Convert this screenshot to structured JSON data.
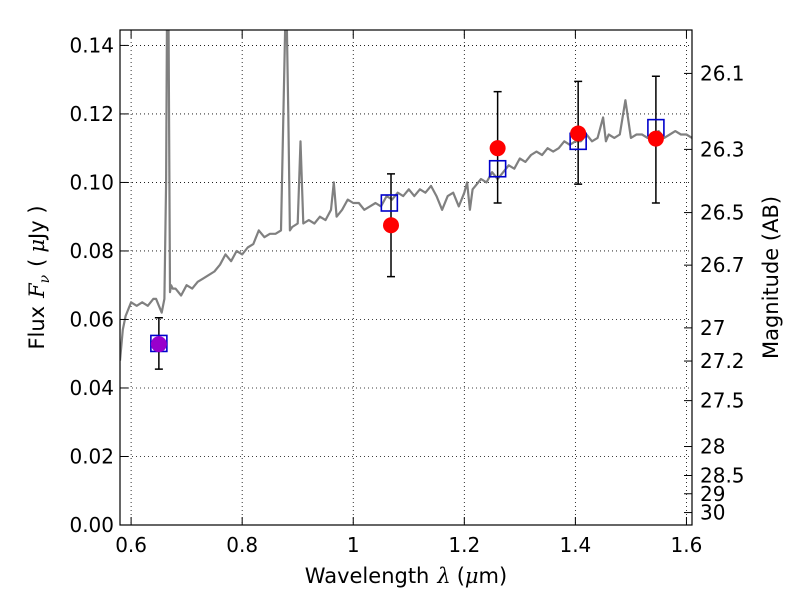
{
  "chart_data": {
    "type": "scatter",
    "title": "",
    "xlabel": "Wavelength",
    "xlabel_symbol": "λ",
    "xlabel_unit_open": "(",
    "xlabel_unit_prefix": "μ",
    "xlabel_unit": "m)",
    "ylabel": "Flux",
    "ylabel_symbol": "F",
    "ylabel_subscript": "ν",
    "ylabel_unit_open": "(",
    "ylabel_unit_prefix": "μ",
    "ylabel_unit": "Jy )",
    "y2label": "Magnitude (AB)",
    "xlim": [
      0.58,
      1.61
    ],
    "ylim": [
      0.0,
      0.1445
    ],
    "grid": true,
    "x_ticks": [
      0.6,
      0.8,
      1.0,
      1.2,
      1.4,
      1.6
    ],
    "x_tick_labels": [
      "0.6",
      "0.8",
      "1",
      "1.2",
      "1.4",
      "1.6"
    ],
    "y_ticks": [
      0.0,
      0.02,
      0.04,
      0.06,
      0.08,
      0.1,
      0.12,
      0.14
    ],
    "y_tick_labels": [
      "0.00",
      "0.02",
      "0.04",
      "0.06",
      "0.08",
      "0.10",
      "0.12",
      "0.14"
    ],
    "y2_ticks": [
      26.1,
      26.3,
      26.5,
      26.7,
      27,
      27.2,
      27.5,
      28,
      28.5,
      29,
      30
    ],
    "y2_tick_labels": [
      "26.1",
      "26.3",
      "26.5",
      "26.7",
      "27",
      "27.2",
      "27.5",
      "28",
      "28.5",
      "29",
      "30"
    ],
    "series": [
      {
        "kind": "model-spectrum",
        "color": "#808080",
        "x": [
          0.58,
          0.585,
          0.59,
          0.6,
          0.61,
          0.62,
          0.63,
          0.64,
          0.645,
          0.65,
          0.655,
          0.66,
          0.663,
          0.665,
          0.667,
          0.67,
          0.672,
          0.675,
          0.68,
          0.69,
          0.7,
          0.71,
          0.72,
          0.73,
          0.74,
          0.75,
          0.76,
          0.77,
          0.78,
          0.79,
          0.8,
          0.81,
          0.82,
          0.83,
          0.84,
          0.85,
          0.86,
          0.87,
          0.878,
          0.88,
          0.883,
          0.886,
          0.89,
          0.9,
          0.905,
          0.91,
          0.92,
          0.93,
          0.94,
          0.95,
          0.96,
          0.965,
          0.97,
          0.98,
          0.99,
          1.0,
          1.01,
          1.02,
          1.03,
          1.04,
          1.05,
          1.06,
          1.07,
          1.08,
          1.09,
          1.1,
          1.11,
          1.12,
          1.13,
          1.14,
          1.15,
          1.16,
          1.17,
          1.18,
          1.19,
          1.2,
          1.205,
          1.21,
          1.215,
          1.22,
          1.23,
          1.24,
          1.25,
          1.26,
          1.27,
          1.28,
          1.29,
          1.3,
          1.31,
          1.32,
          1.33,
          1.34,
          1.35,
          1.36,
          1.37,
          1.38,
          1.39,
          1.4,
          1.41,
          1.42,
          1.43,
          1.44,
          1.45,
          1.455,
          1.46,
          1.47,
          1.48,
          1.49,
          1.5,
          1.51,
          1.52,
          1.53,
          1.54,
          1.55,
          1.56,
          1.57,
          1.58,
          1.59,
          1.6,
          1.61
        ],
        "values": [
          0.048,
          0.057,
          0.061,
          0.065,
          0.064,
          0.065,
          0.064,
          0.066,
          0.066,
          0.064,
          0.062,
          0.066,
          0.1,
          0.16,
          0.16,
          0.068,
          0.07,
          0.069,
          0.069,
          0.067,
          0.07,
          0.069,
          0.071,
          0.072,
          0.073,
          0.074,
          0.076,
          0.079,
          0.077,
          0.08,
          0.079,
          0.081,
          0.082,
          0.086,
          0.084,
          0.085,
          0.085,
          0.086,
          0.15,
          0.15,
          0.12,
          0.086,
          0.087,
          0.088,
          0.112,
          0.088,
          0.089,
          0.088,
          0.09,
          0.089,
          0.092,
          0.1,
          0.09,
          0.092,
          0.095,
          0.094,
          0.094,
          0.092,
          0.093,
          0.094,
          0.093,
          0.096,
          0.095,
          0.097,
          0.096,
          0.098,
          0.096,
          0.098,
          0.097,
          0.099,
          0.096,
          0.092,
          0.096,
          0.097,
          0.093,
          0.097,
          0.1,
          0.092,
          0.098,
          0.099,
          0.101,
          0.1,
          0.103,
          0.101,
          0.103,
          0.105,
          0.104,
          0.107,
          0.106,
          0.108,
          0.109,
          0.108,
          0.11,
          0.109,
          0.11,
          0.112,
          0.111,
          0.112,
          0.112,
          0.114,
          0.112,
          0.113,
          0.119,
          0.112,
          0.114,
          0.113,
          0.114,
          0.124,
          0.113,
          0.114,
          0.114,
          0.113,
          0.114,
          0.115,
          0.113,
          0.114,
          0.115,
          0.114,
          0.114,
          0.113
        ]
      },
      {
        "kind": "model-photometry",
        "marker": "open-square",
        "color": "#0000cc",
        "x": [
          0.65,
          1.065,
          1.26,
          1.405,
          1.545
        ],
        "values": [
          0.053,
          0.094,
          0.104,
          0.112,
          0.116
        ]
      },
      {
        "kind": "observed-photometry",
        "marker": "filled-circle",
        "colors": [
          "#9900cc",
          "#ff0000",
          "#ff0000",
          "#ff0000",
          "#ff0000"
        ],
        "x": [
          0.65,
          1.068,
          1.26,
          1.405,
          1.545
        ],
        "values": [
          0.0528,
          0.0875,
          0.11,
          0.1143,
          0.1128
        ],
        "error_low": [
          0.0455,
          0.0725,
          0.094,
          0.0995,
          0.094
        ],
        "error_high": [
          0.0605,
          0.1025,
          0.1265,
          0.1295,
          0.131
        ]
      }
    ]
  }
}
